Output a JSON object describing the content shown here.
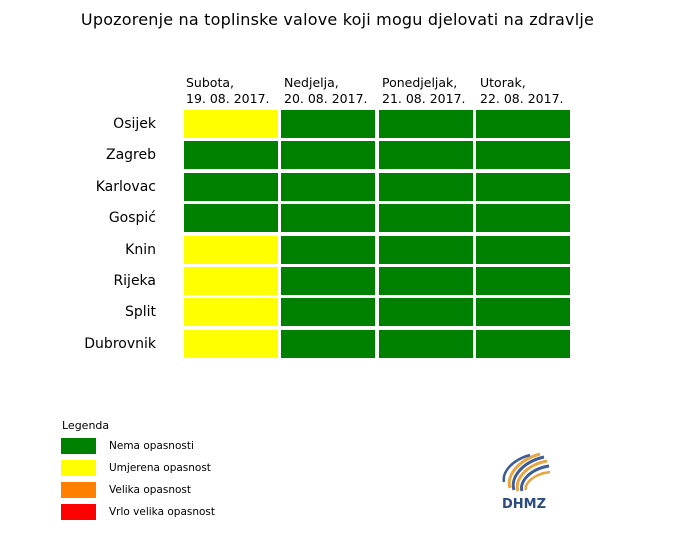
{
  "title": "Upozorenje na toplinske valove koji mogu djelovati na zdravlje",
  "days": [
    {
      "name": "Subota,",
      "date": "19. 08. 2017."
    },
    {
      "name": "Nedjelja,",
      "date": "20. 08. 2017."
    },
    {
      "name": "Ponedjeljak,",
      "date": "21. 08. 2017."
    },
    {
      "name": "Utorak,",
      "date": "22. 08. 2017."
    }
  ],
  "cities": [
    {
      "name": "Osijek",
      "levels": [
        "umjerena",
        "nema",
        "nema",
        "nema"
      ]
    },
    {
      "name": "Zagreb",
      "levels": [
        "nema",
        "nema",
        "nema",
        "nema"
      ]
    },
    {
      "name": "Karlovac",
      "levels": [
        "nema",
        "nema",
        "nema",
        "nema"
      ]
    },
    {
      "name": "Gospić",
      "levels": [
        "nema",
        "nema",
        "nema",
        "nema"
      ]
    },
    {
      "name": "Knin",
      "levels": [
        "umjerena",
        "nema",
        "nema",
        "nema"
      ]
    },
    {
      "name": "Rijeka",
      "levels": [
        "umjerena",
        "nema",
        "nema",
        "nema"
      ]
    },
    {
      "name": "Split",
      "levels": [
        "umjerena",
        "nema",
        "nema",
        "nema"
      ]
    },
    {
      "name": "Dubrovnik",
      "levels": [
        "umjerena",
        "nema",
        "nema",
        "nema"
      ]
    }
  ],
  "legend": {
    "title": "Legenda",
    "items": [
      {
        "key": "nema",
        "label": "Nema opasnosti",
        "color": "#008000"
      },
      {
        "key": "umjerena",
        "label": "Umjerena opasnost",
        "color": "#ffff00"
      },
      {
        "key": "velika",
        "label": "Velika opasnost",
        "color": "#ff8000"
      },
      {
        "key": "vrlo_velika",
        "label": "Vrlo velika opasnost",
        "color": "#ff0000"
      }
    ]
  },
  "logo": {
    "text": "DHMZ",
    "text_color": "#2b4b82"
  }
}
